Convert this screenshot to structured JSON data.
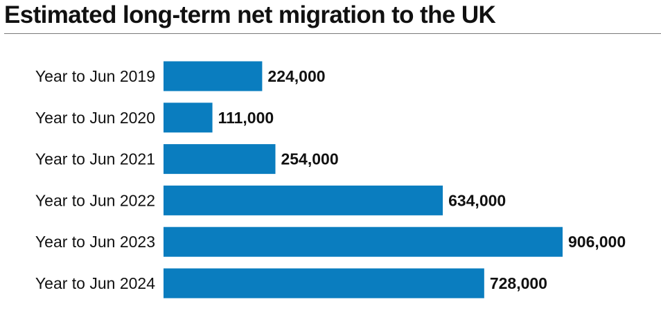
{
  "title": "Estimated long-term net migration to the UK",
  "colors": {
    "bar": "#0a7dbf",
    "text": "#111111",
    "rule": "#7a7a7a"
  },
  "chart_data": {
    "type": "bar",
    "orientation": "horizontal",
    "title": "Estimated long-term net migration to the UK",
    "categories": [
      "Year to Jun 2019",
      "Year to Jun 2020",
      "Year to Jun 2021",
      "Year to Jun 2022",
      "Year to Jun 2023",
      "Year to Jun 2024"
    ],
    "values": [
      224000,
      111000,
      254000,
      634000,
      906000,
      728000
    ],
    "value_labels": [
      "224,000",
      "111,000",
      "254,000",
      "634,000",
      "906,000",
      "728,000"
    ],
    "xlim": [
      0,
      906000
    ],
    "grid": false,
    "legend": "none"
  }
}
